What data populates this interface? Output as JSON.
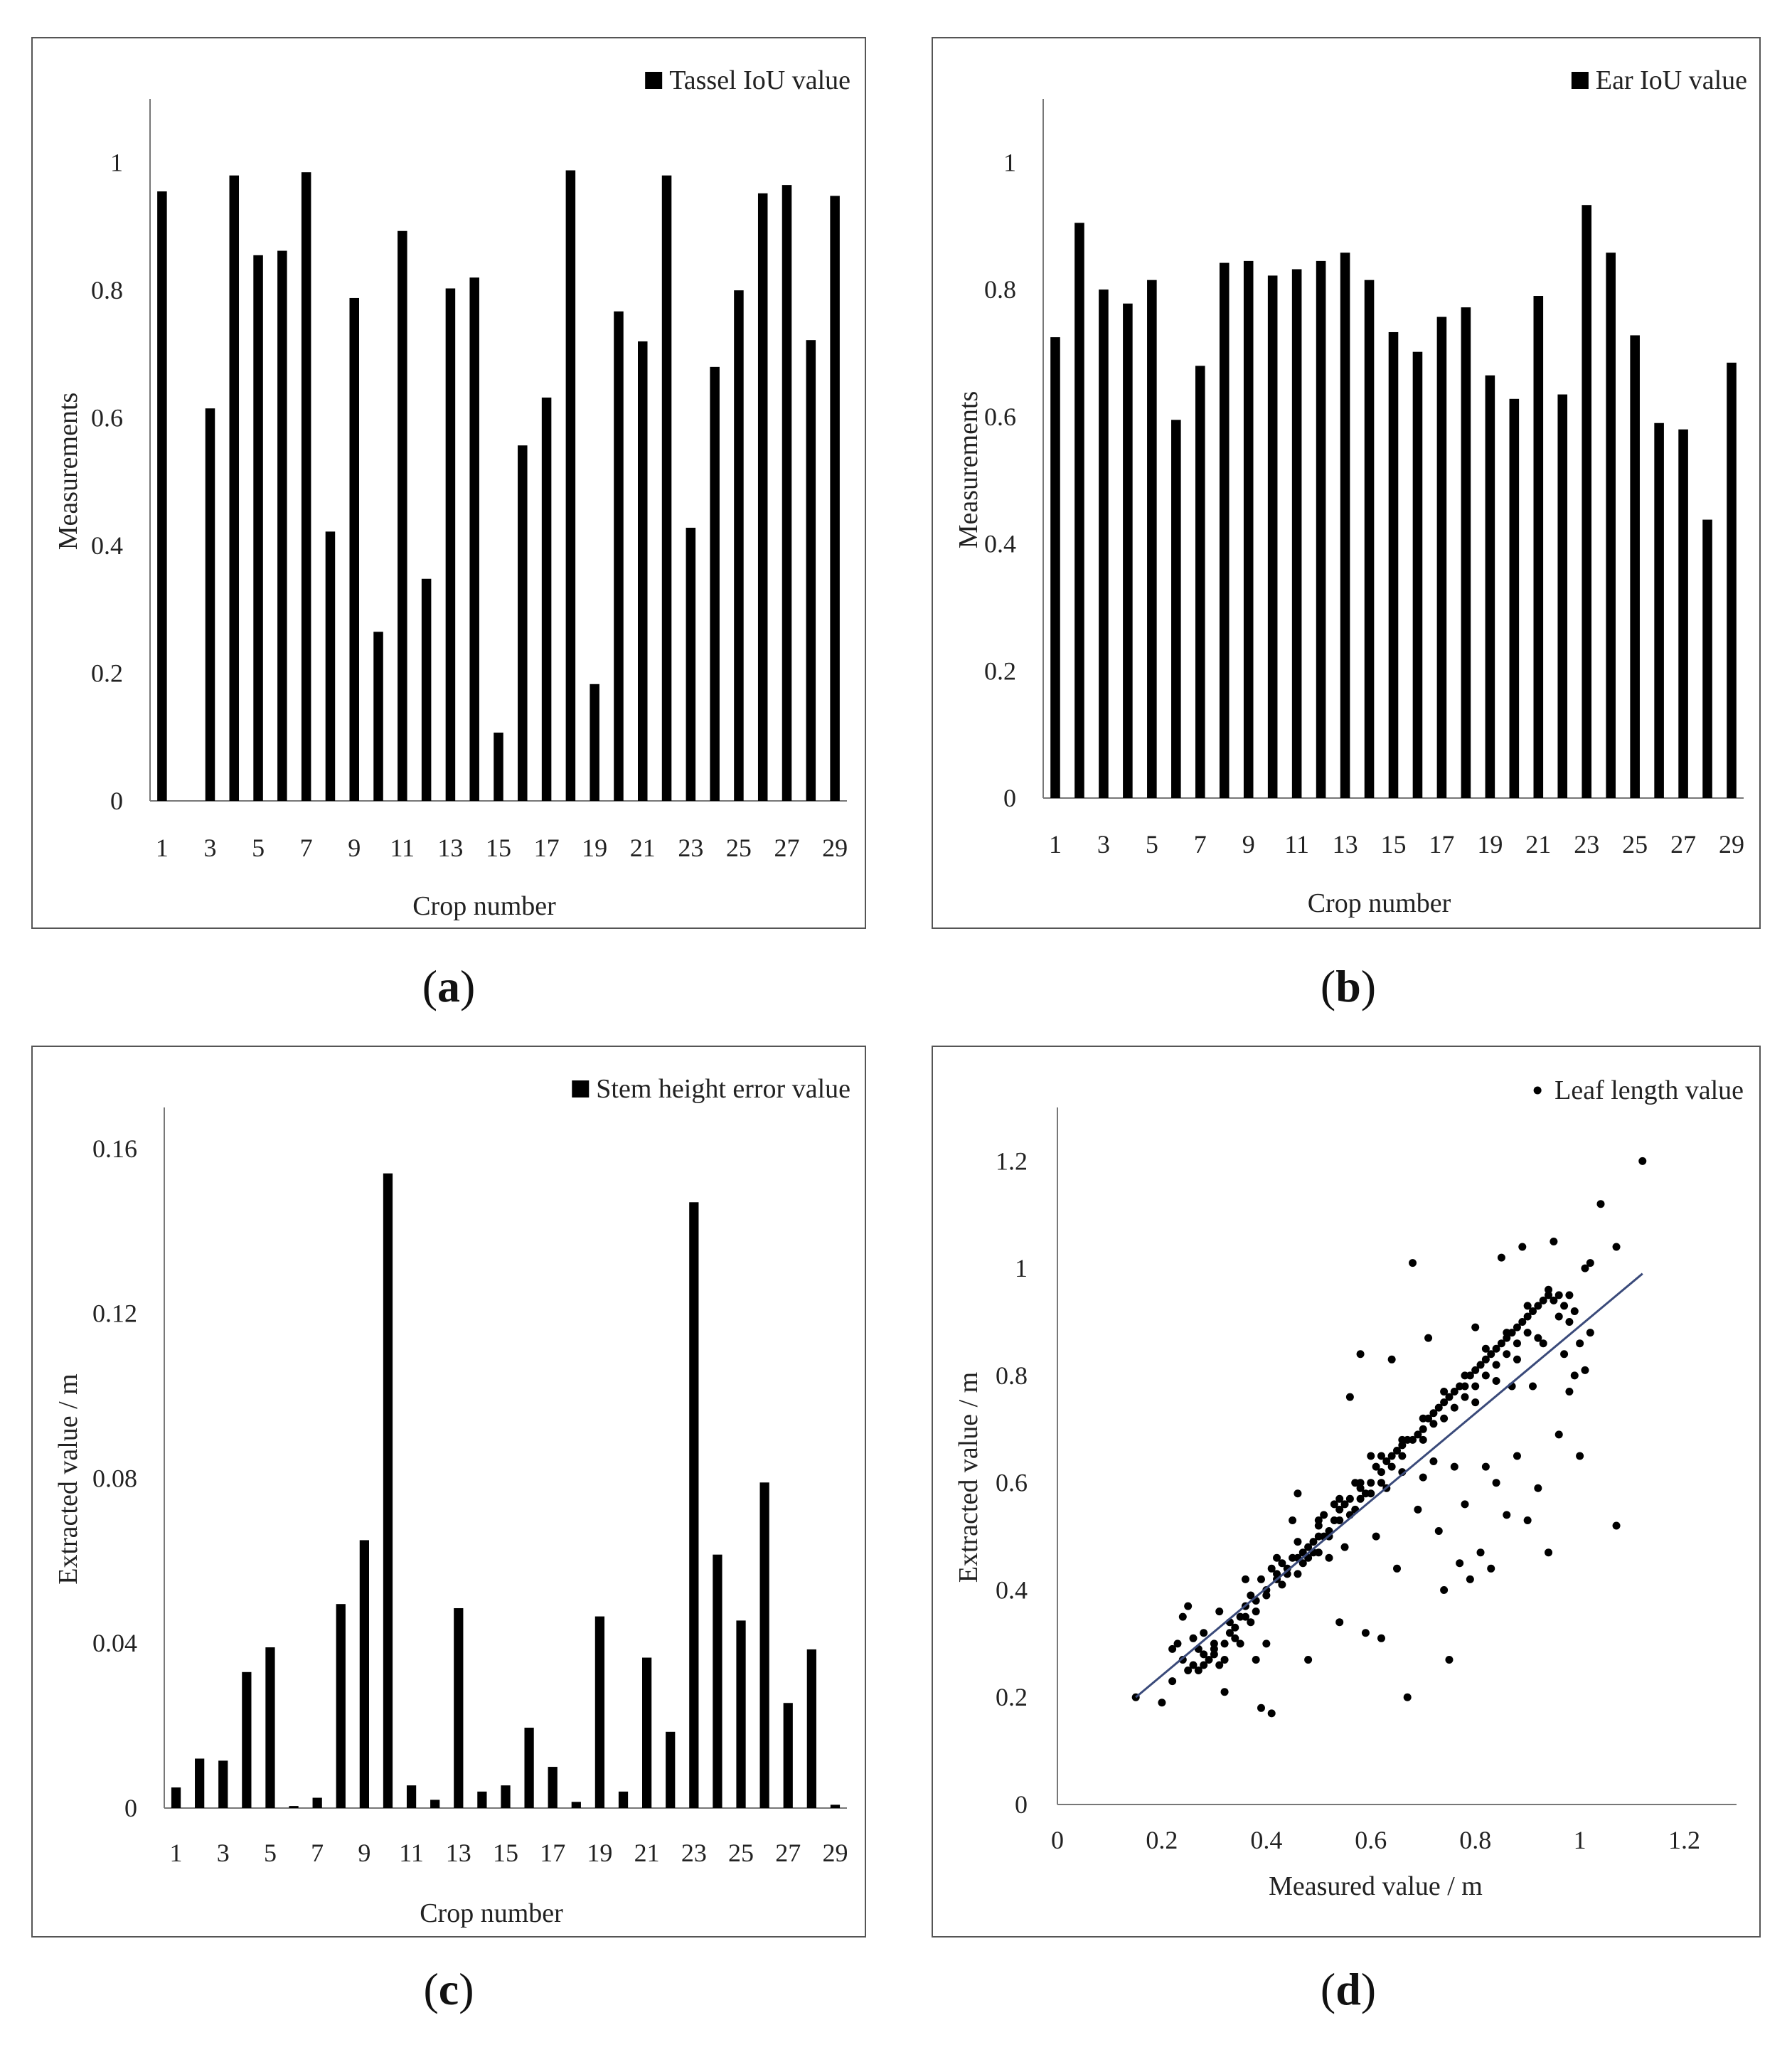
{
  "chart_data": [
    {
      "type": "bar",
      "panel": "a",
      "legend": "Tassel IoU value",
      "legend_position": "top-right",
      "xlabel": "Crop number",
      "ylabel": "Measurements",
      "ylim": [
        0,
        1.1
      ],
      "yticks": [
        "0",
        "0.2",
        "0.4",
        "0.6",
        "0.8",
        "1"
      ],
      "ytick_values": [
        0,
        0.2,
        0.4,
        0.6,
        0.8,
        1.0
      ],
      "xtick_labels": [
        "1",
        "3",
        "5",
        "7",
        "9",
        "11",
        "13",
        "15",
        "17",
        "19",
        "21",
        "23",
        "25",
        "27",
        "29"
      ],
      "categories": [
        1,
        2,
        3,
        4,
        5,
        6,
        7,
        8,
        9,
        10,
        11,
        12,
        13,
        14,
        15,
        16,
        17,
        18,
        19,
        20,
        21,
        22,
        23,
        24,
        25,
        26,
        27,
        28,
        29
      ],
      "values": [
        0.955,
        0,
        0.615,
        0.98,
        0.855,
        0.862,
        0.985,
        0.422,
        0.788,
        0.265,
        0.893,
        0.348,
        0.803,
        0.82,
        0.107,
        0.557,
        0.632,
        0.988,
        0.183,
        0.767,
        0.72,
        0.98,
        0.428,
        0.68,
        0.8,
        0.952,
        0.965,
        0.722,
        0.948
      ]
    },
    {
      "type": "bar",
      "panel": "b",
      "legend": "Ear IoU value",
      "legend_position": "top-right",
      "xlabel": "Crop number",
      "ylabel": "Measurements",
      "ylim": [
        0,
        1.1
      ],
      "yticks": [
        "0",
        "0.2",
        "0.4",
        "0.6",
        "0.8",
        "1"
      ],
      "ytick_values": [
        0,
        0.2,
        0.4,
        0.6,
        0.8,
        1.0
      ],
      "xtick_labels": [
        "1",
        "3",
        "5",
        "7",
        "9",
        "11",
        "13",
        "15",
        "17",
        "19",
        "21",
        "23",
        "25",
        "27",
        "29"
      ],
      "categories": [
        1,
        2,
        3,
        4,
        5,
        6,
        7,
        8,
        9,
        10,
        11,
        12,
        13,
        14,
        15,
        16,
        17,
        18,
        19,
        20,
        21,
        22,
        23,
        24,
        25,
        26,
        27,
        28,
        29
      ],
      "values": [
        0.725,
        0.905,
        0.8,
        0.778,
        0.815,
        0.595,
        0.68,
        0.842,
        0.845,
        0.822,
        0.832,
        0.845,
        0.858,
        0.815,
        0.733,
        0.702,
        0.757,
        0.772,
        0.665,
        0.628,
        0.79,
        0.635,
        0.933,
        0.858,
        0.728,
        0.59,
        0.58,
        0.438,
        0.685
      ]
    },
    {
      "type": "bar",
      "panel": "c",
      "legend": "Stem height error value",
      "legend_position": "top-right",
      "xlabel": "Crop number",
      "ylabel": "Extracted value / m",
      "ylim": [
        0,
        0.17
      ],
      "yticks": [
        "0",
        "0.04",
        "0.08",
        "0.12",
        "0.16"
      ],
      "ytick_values": [
        0,
        0.04,
        0.08,
        0.12,
        0.16
      ],
      "xtick_labels": [
        "1",
        "3",
        "5",
        "7",
        "9",
        "11",
        "13",
        "15",
        "17",
        "19",
        "21",
        "23",
        "25",
        "27",
        "29"
      ],
      "categories": [
        1,
        2,
        3,
        4,
        5,
        6,
        7,
        8,
        9,
        10,
        11,
        12,
        13,
        14,
        15,
        16,
        17,
        18,
        19,
        20,
        21,
        22,
        23,
        24,
        25,
        26,
        27,
        28,
        29
      ],
      "values": [
        0.005,
        0.012,
        0.0115,
        0.033,
        0.039,
        0.0005,
        0.0025,
        0.0495,
        0.065,
        0.154,
        0.0055,
        0.002,
        0.0485,
        0.004,
        0.0055,
        0.0195,
        0.01,
        0.0015,
        0.0465,
        0.004,
        0.0365,
        0.0185,
        0.147,
        0.0615,
        0.0455,
        0.079,
        0.0255,
        0.0385,
        0.0008
      ]
    },
    {
      "type": "scatter",
      "panel": "d",
      "legend": "Leaf length value",
      "legend_position": "top-right",
      "xlabel": "Measured value / m",
      "ylabel": "Extracted value / m",
      "xlim": [
        0,
        1.3
      ],
      "ylim": [
        0,
        1.3
      ],
      "xticks": [
        "0",
        "0.2",
        "0.4",
        "0.6",
        "0.8",
        "1",
        "1.2"
      ],
      "xtick_values": [
        0,
        0.2,
        0.4,
        0.6,
        0.8,
        1.0,
        1.2
      ],
      "yticks": [
        "0",
        "0.2",
        "0.4",
        "0.6",
        "0.8",
        "1",
        "1.2"
      ],
      "ytick_values": [
        0,
        0.2,
        0.4,
        0.6,
        0.8,
        1.0,
        1.2
      ],
      "trendline": {
        "x": [
          0.15,
          1.12
        ],
        "y": [
          0.2,
          0.99
        ]
      },
      "line_color": "#3a4a7a",
      "points": [
        [
          0.15,
          0.2
        ],
        [
          0.2,
          0.19
        ],
        [
          0.22,
          0.23
        ],
        [
          0.22,
          0.29
        ],
        [
          0.23,
          0.3
        ],
        [
          0.24,
          0.35
        ],
        [
          0.24,
          0.27
        ],
        [
          0.25,
          0.37
        ],
        [
          0.25,
          0.25
        ],
        [
          0.26,
          0.31
        ],
        [
          0.26,
          0.26
        ],
        [
          0.27,
          0.29
        ],
        [
          0.27,
          0.25
        ],
        [
          0.28,
          0.28
        ],
        [
          0.28,
          0.32
        ],
        [
          0.29,
          0.27
        ],
        [
          0.3,
          0.29
        ],
        [
          0.3,
          0.3
        ],
        [
          0.31,
          0.36
        ],
        [
          0.31,
          0.26
        ],
        [
          0.32,
          0.27
        ],
        [
          0.32,
          0.21
        ],
        [
          0.33,
          0.32
        ],
        [
          0.33,
          0.34
        ],
        [
          0.34,
          0.33
        ],
        [
          0.35,
          0.35
        ],
        [
          0.35,
          0.3
        ],
        [
          0.36,
          0.37
        ],
        [
          0.36,
          0.42
        ],
        [
          0.37,
          0.34
        ],
        [
          0.37,
          0.39
        ],
        [
          0.38,
          0.38
        ],
        [
          0.38,
          0.27
        ],
        [
          0.39,
          0.42
        ],
        [
          0.39,
          0.18
        ],
        [
          0.4,
          0.4
        ],
        [
          0.4,
          0.3
        ],
        [
          0.41,
          0.17
        ],
        [
          0.41,
          0.44
        ],
        [
          0.42,
          0.43
        ],
        [
          0.42,
          0.42
        ],
        [
          0.43,
          0.45
        ],
        [
          0.43,
          0.41
        ],
        [
          0.44,
          0.44
        ],
        [
          0.45,
          0.46
        ],
        [
          0.45,
          0.53
        ],
        [
          0.46,
          0.43
        ],
        [
          0.46,
          0.58
        ],
        [
          0.47,
          0.47
        ],
        [
          0.47,
          0.45
        ],
        [
          0.48,
          0.48
        ],
        [
          0.48,
          0.27
        ],
        [
          0.49,
          0.49
        ],
        [
          0.49,
          0.47
        ],
        [
          0.5,
          0.5
        ],
        [
          0.5,
          0.52
        ],
        [
          0.51,
          0.54
        ],
        [
          0.51,
          0.5
        ],
        [
          0.52,
          0.51
        ],
        [
          0.52,
          0.46
        ],
        [
          0.53,
          0.53
        ],
        [
          0.53,
          0.56
        ],
        [
          0.54,
          0.55
        ],
        [
          0.54,
          0.34
        ],
        [
          0.55,
          0.56
        ],
        [
          0.55,
          0.48
        ],
        [
          0.56,
          0.57
        ],
        [
          0.56,
          0.76
        ],
        [
          0.57,
          0.55
        ],
        [
          0.57,
          0.6
        ],
        [
          0.58,
          0.59
        ],
        [
          0.58,
          0.84
        ],
        [
          0.59,
          0.58
        ],
        [
          0.59,
          0.32
        ],
        [
          0.6,
          0.6
        ],
        [
          0.6,
          0.65
        ],
        [
          0.61,
          0.63
        ],
        [
          0.61,
          0.5
        ],
        [
          0.62,
          0.62
        ],
        [
          0.62,
          0.31
        ],
        [
          0.63,
          0.64
        ],
        [
          0.63,
          0.59
        ],
        [
          0.64,
          0.65
        ],
        [
          0.64,
          0.83
        ],
        [
          0.65,
          0.66
        ],
        [
          0.65,
          0.44
        ],
        [
          0.66,
          0.67
        ],
        [
          0.66,
          0.62
        ],
        [
          0.67,
          0.68
        ],
        [
          0.67,
          0.2
        ],
        [
          0.68,
          0.68
        ],
        [
          0.68,
          1.01
        ],
        [
          0.69,
          0.69
        ],
        [
          0.69,
          0.55
        ],
        [
          0.7,
          0.7
        ],
        [
          0.7,
          0.61
        ],
        [
          0.71,
          0.72
        ],
        [
          0.71,
          0.87
        ],
        [
          0.72,
          0.71
        ],
        [
          0.72,
          0.64
        ],
        [
          0.73,
          0.74
        ],
        [
          0.73,
          0.51
        ],
        [
          0.74,
          0.75
        ],
        [
          0.74,
          0.4
        ],
        [
          0.75,
          0.76
        ],
        [
          0.75,
          0.27
        ],
        [
          0.76,
          0.77
        ],
        [
          0.76,
          0.63
        ],
        [
          0.77,
          0.78
        ],
        [
          0.77,
          0.45
        ],
        [
          0.78,
          0.78
        ],
        [
          0.78,
          0.56
        ],
        [
          0.79,
          0.8
        ],
        [
          0.79,
          0.42
        ],
        [
          0.8,
          0.81
        ],
        [
          0.8,
          0.89
        ],
        [
          0.81,
          0.82
        ],
        [
          0.81,
          0.47
        ],
        [
          0.82,
          0.83
        ],
        [
          0.82,
          0.63
        ],
        [
          0.83,
          0.84
        ],
        [
          0.83,
          0.44
        ],
        [
          0.84,
          0.85
        ],
        [
          0.84,
          0.6
        ],
        [
          0.85,
          0.86
        ],
        [
          0.85,
          1.02
        ],
        [
          0.86,
          0.87
        ],
        [
          0.86,
          0.54
        ],
        [
          0.87,
          0.88
        ],
        [
          0.87,
          0.78
        ],
        [
          0.88,
          0.89
        ],
        [
          0.88,
          0.65
        ],
        [
          0.89,
          0.9
        ],
        [
          0.89,
          1.04
        ],
        [
          0.9,
          0.91
        ],
        [
          0.9,
          0.53
        ],
        [
          0.91,
          0.92
        ],
        [
          0.91,
          0.78
        ],
        [
          0.92,
          0.93
        ],
        [
          0.92,
          0.59
        ],
        [
          0.93,
          0.94
        ],
        [
          0.93,
          0.86
        ],
        [
          0.94,
          0.95
        ],
        [
          0.94,
          0.47
        ],
        [
          0.95,
          0.94
        ],
        [
          0.95,
          1.05
        ],
        [
          0.96,
          0.95
        ],
        [
          0.96,
          0.69
        ],
        [
          0.97,
          0.93
        ],
        [
          0.97,
          0.84
        ],
        [
          0.98,
          0.9
        ],
        [
          0.98,
          0.77
        ],
        [
          0.99,
          0.92
        ],
        [
          0.99,
          0.8
        ],
        [
          1.0,
          0.86
        ],
        [
          1.0,
          0.65
        ],
        [
          1.01,
          1.0
        ],
        [
          1.01,
          0.81
        ],
        [
          1.02,
          1.01
        ],
        [
          1.02,
          0.88
        ],
        [
          1.04,
          1.12
        ],
        [
          1.07,
          1.04
        ],
        [
          1.07,
          0.52
        ],
        [
          1.12,
          1.2
        ],
        [
          0.5,
          0.47
        ],
        [
          0.52,
          0.5
        ],
        [
          0.54,
          0.53
        ],
        [
          0.56,
          0.54
        ],
        [
          0.58,
          0.57
        ],
        [
          0.6,
          0.58
        ],
        [
          0.62,
          0.6
        ],
        [
          0.64,
          0.63
        ],
        [
          0.66,
          0.65
        ],
        [
          0.7,
          0.68
        ],
        [
          0.72,
          0.73
        ],
        [
          0.74,
          0.72
        ],
        [
          0.76,
          0.74
        ],
        [
          0.78,
          0.76
        ],
        [
          0.8,
          0.78
        ],
        [
          0.82,
          0.8
        ],
        [
          0.84,
          0.82
        ],
        [
          0.86,
          0.84
        ],
        [
          0.88,
          0.86
        ],
        [
          0.9,
          0.88
        ],
        [
          0.44,
          0.43
        ],
        [
          0.46,
          0.46
        ],
        [
          0.48,
          0.46
        ],
        [
          0.4,
          0.39
        ],
        [
          0.38,
          0.36
        ],
        [
          0.36,
          0.35
        ],
        [
          0.34,
          0.31
        ],
        [
          0.32,
          0.3
        ],
        [
          0.3,
          0.28
        ],
        [
          0.28,
          0.26
        ],
        [
          0.42,
          0.46
        ],
        [
          0.46,
          0.49
        ],
        [
          0.5,
          0.53
        ],
        [
          0.54,
          0.57
        ],
        [
          0.58,
          0.6
        ],
        [
          0.62,
          0.65
        ],
        [
          0.66,
          0.68
        ],
        [
          0.7,
          0.72
        ],
        [
          0.74,
          0.77
        ],
        [
          0.78,
          0.8
        ],
        [
          0.82,
          0.85
        ],
        [
          0.86,
          0.88
        ],
        [
          0.9,
          0.93
        ],
        [
          0.94,
          0.96
        ],
        [
          0.98,
          0.95
        ],
        [
          0.96,
          0.91
        ],
        [
          0.92,
          0.87
        ],
        [
          0.88,
          0.83
        ],
        [
          0.84,
          0.79
        ],
        [
          0.8,
          0.75
        ]
      ]
    }
  ],
  "captions": {
    "a": "a",
    "b": "b",
    "c": "c",
    "d": "d"
  }
}
